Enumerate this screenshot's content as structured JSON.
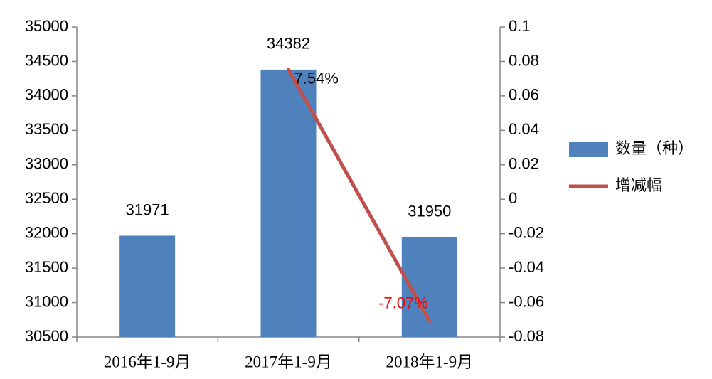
{
  "chart_data": {
    "type": "bar",
    "categories": [
      "2016年1-9月",
      "2017年1-9月",
      "2018年1-9月"
    ],
    "series": [
      {
        "name": "数量（种）",
        "type": "bar",
        "color": "#4f81bd",
        "values": [
          31971,
          34382,
          31950
        ]
      },
      {
        "name": "增减幅",
        "type": "line",
        "axis": "y2",
        "color": "#c0504d",
        "values": [
          null,
          0.0754,
          -0.0707
        ],
        "value_labels": [
          null,
          "7.54%",
          "-7.07%"
        ],
        "value_label_colors": [
          null,
          "#000000",
          "#ff0000"
        ]
      }
    ],
    "ylim": [
      30500,
      35000
    ],
    "yticks": [
      30500,
      31000,
      31500,
      32000,
      32500,
      33000,
      33500,
      34000,
      34500,
      35000
    ],
    "y2lim": [
      -0.08,
      0.1
    ],
    "y2ticks": [
      -0.08,
      -0.06,
      -0.04,
      -0.02,
      0,
      0.02,
      0.04,
      0.06,
      0.08,
      0.1
    ],
    "grid": false,
    "legend": "right"
  }
}
